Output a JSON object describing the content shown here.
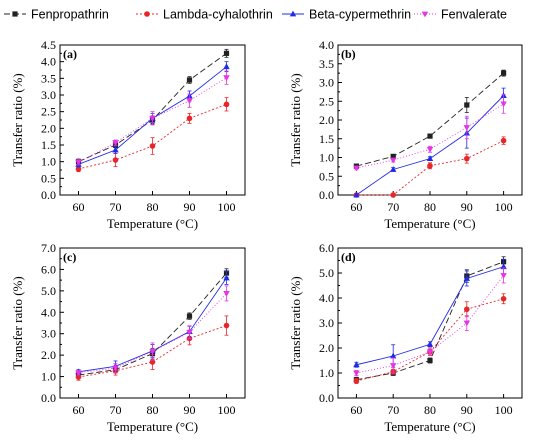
{
  "legend": {
    "items": [
      {
        "name": "Fenpropathrin",
        "color": "#222222",
        "marker": "square",
        "dash": "6,3"
      },
      {
        "name": "Lambda-cyhalothrin",
        "color": "#e8262a",
        "marker": "circle",
        "dash": "2,2"
      },
      {
        "name": "Beta-cypermethrin",
        "color": "#1f2be6",
        "marker": "triangle-up",
        "dash": ""
      },
      {
        "name": "Fenvalerate",
        "color": "#e633e6",
        "marker": "triangle-down",
        "dash": "1,2"
      }
    ]
  },
  "chart_data": [
    {
      "type": "line",
      "panel": "(a)",
      "x": [
        60,
        70,
        80,
        90,
        100
      ],
      "xlabel": "Temperature (°C)",
      "ylabel": "Transfer ratio (%)",
      "ylim": [
        0.0,
        4.5
      ],
      "yticks": [
        0.0,
        0.5,
        1.0,
        1.5,
        2.0,
        2.5,
        3.0,
        3.5,
        4.0,
        4.5
      ],
      "ytick_labels": [
        "0.0",
        "0.5",
        "1.0",
        "1.5",
        "2.0",
        "2.5",
        "3.0",
        "3.5",
        "4.0",
        "4.5"
      ],
      "series": [
        {
          "name": "Fenpropathrin",
          "values": [
            1.0,
            1.5,
            2.25,
            3.45,
            4.25
          ],
          "errors": [
            0.08,
            0.08,
            0.12,
            0.1,
            0.12
          ]
        },
        {
          "name": "Lambda-cyhalothrin",
          "values": [
            0.78,
            1.05,
            1.47,
            2.3,
            2.72
          ],
          "errors": [
            0.08,
            0.2,
            0.25,
            0.15,
            0.2
          ]
        },
        {
          "name": "Beta-cypermethrin",
          "values": [
            0.92,
            1.35,
            2.3,
            2.97,
            3.85
          ],
          "errors": [
            0.08,
            0.1,
            0.15,
            0.15,
            0.15
          ]
        },
        {
          "name": "Fenvalerate",
          "values": [
            0.98,
            1.57,
            2.3,
            2.83,
            3.52
          ],
          "errors": [
            0.08,
            0.08,
            0.2,
            0.2,
            0.2
          ]
        }
      ]
    },
    {
      "type": "line",
      "panel": "(b)",
      "x": [
        60,
        70,
        80,
        90,
        100
      ],
      "xlabel": "Temperature (°C)",
      "ylabel": "Transfer ratio (%)",
      "ylim": [
        0.0,
        4.0
      ],
      "yticks": [
        0.0,
        0.5,
        1.0,
        1.5,
        2.0,
        2.5,
        3.0,
        3.5,
        4.0
      ],
      "ytick_labels": [
        "0.0",
        "0.5",
        "1.0",
        "1.5",
        "2.0",
        "2.5",
        "3.0",
        "3.5",
        "4.0"
      ],
      "series": [
        {
          "name": "Fenpropathrin",
          "values": [
            0.77,
            1.03,
            1.57,
            2.4,
            3.25
          ],
          "errors": [
            0.03,
            0.05,
            0.05,
            0.2,
            0.08
          ]
        },
        {
          "name": "Lambda-cyhalothrin",
          "values": [
            0.0,
            0.0,
            0.78,
            0.97,
            1.45
          ],
          "errors": [
            0.0,
            0.0,
            0.08,
            0.12,
            0.1
          ]
        },
        {
          "name": "Beta-cypermethrin",
          "values": [
            0.0,
            0.68,
            0.97,
            1.65,
            2.65
          ],
          "errors": [
            0.0,
            0.05,
            0.05,
            0.4,
            0.2
          ]
        },
        {
          "name": "Fenvalerate",
          "values": [
            0.72,
            0.93,
            1.22,
            1.8,
            2.43
          ],
          "errors": [
            0.05,
            0.05,
            0.08,
            0.3,
            0.25
          ]
        }
      ]
    },
    {
      "type": "line",
      "panel": "(c)",
      "x": [
        60,
        70,
        80,
        90,
        100
      ],
      "xlabel": "Temperature (°C)",
      "ylabel": "Transfer ratio (%)",
      "ylim": [
        0.0,
        7.0
      ],
      "yticks": [
        0.0,
        1.0,
        2.0,
        3.0,
        4.0,
        5.0,
        6.0,
        7.0
      ],
      "ytick_labels": [
        "0.0",
        "1.0",
        "2.0",
        "3.0",
        "4.0",
        "5.0",
        "6.0",
        "7.0"
      ],
      "series": [
        {
          "name": "Fenpropathrin",
          "values": [
            1.07,
            1.32,
            2.07,
            3.82,
            5.83
          ],
          "errors": [
            0.1,
            0.15,
            0.25,
            0.15,
            0.2
          ]
        },
        {
          "name": "Lambda-cyhalothrin",
          "values": [
            0.98,
            1.27,
            1.68,
            2.78,
            3.38
          ],
          "errors": [
            0.15,
            0.2,
            0.35,
            0.3,
            0.45
          ]
        },
        {
          "name": "Beta-cypermethrin",
          "values": [
            1.22,
            1.48,
            2.2,
            3.1,
            5.6
          ],
          "errors": [
            0.1,
            0.25,
            0.3,
            0.25,
            0.3
          ]
        },
        {
          "name": "Fenvalerate",
          "values": [
            1.18,
            1.4,
            2.17,
            3.07,
            4.88
          ],
          "errors": [
            0.1,
            0.2,
            0.4,
            0.3,
            0.35
          ]
        }
      ]
    },
    {
      "type": "line",
      "panel": "(d)",
      "x": [
        60,
        70,
        80,
        90,
        100
      ],
      "xlabel": "Temperature (°C)",
      "ylabel": "Transfer ratio (%)",
      "ylim": [
        0.0,
        6.0
      ],
      "yticks": [
        0.0,
        1.0,
        2.0,
        3.0,
        4.0,
        5.0,
        6.0
      ],
      "ytick_labels": [
        "0.0",
        "1.0",
        "2.0",
        "3.0",
        "4.0",
        "5.0",
        "6.0"
      ],
      "series": [
        {
          "name": "Fenpropathrin",
          "values": [
            0.73,
            1.0,
            1.5,
            4.88,
            5.45
          ],
          "errors": [
            0.1,
            0.1,
            0.1,
            0.25,
            0.2
          ]
        },
        {
          "name": "Lambda-cyhalothrin",
          "values": [
            0.68,
            1.05,
            1.85,
            3.55,
            3.97
          ],
          "errors": [
            0.1,
            0.1,
            0.15,
            0.3,
            0.2
          ]
        },
        {
          "name": "Beta-cypermethrin",
          "values": [
            1.33,
            1.68,
            2.15,
            4.78,
            5.25
          ],
          "errors": [
            0.1,
            0.45,
            0.1,
            0.3,
            0.3
          ]
        },
        {
          "name": "Fenvalerate",
          "values": [
            1.0,
            1.3,
            1.85,
            3.0,
            4.9
          ],
          "errors": [
            0.1,
            0.3,
            0.1,
            0.3,
            0.3
          ]
        }
      ]
    }
  ]
}
